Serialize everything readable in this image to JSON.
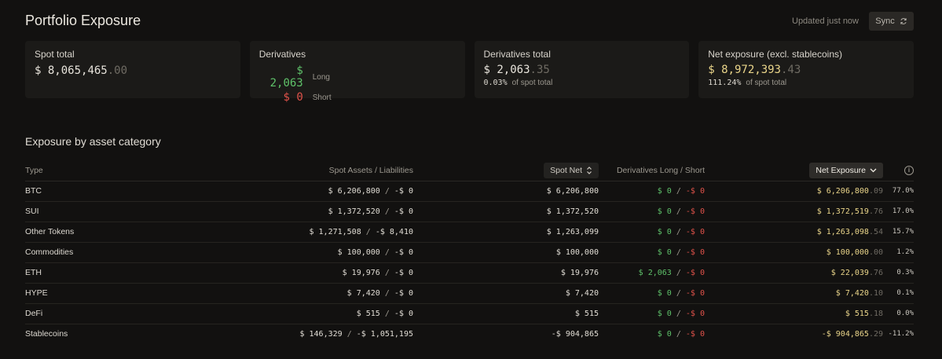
{
  "header": {
    "title": "Portfolio Exposure",
    "updated_text": "Updated just now",
    "sync_label": "Sync"
  },
  "cards": {
    "spot_total": {
      "label": "Spot total",
      "prefix": "$",
      "int": "8,065,465",
      "dec": ".00"
    },
    "derivatives": {
      "label": "Derivatives",
      "long": {
        "prefix": "$",
        "value": "2,063",
        "tag": "Long"
      },
      "short": {
        "prefix": "$",
        "value": "0",
        "tag": "Short"
      }
    },
    "derivatives_total": {
      "label": "Derivatives total",
      "prefix": "$",
      "int": "2,063",
      "dec": ".35",
      "pct": "0.03%",
      "pct_label": "of spot total"
    },
    "net_exposure": {
      "label": "Net exposure (excl. stablecoins)",
      "prefix": "$",
      "int": "8,972,393",
      "dec": ".43",
      "pct": "111.24%",
      "pct_label": "of spot total"
    }
  },
  "table": {
    "section_title": "Exposure by asset category",
    "headers": {
      "type": "Type",
      "spot_assets": "Spot Assets / Liabilities",
      "spot_net": "Spot Net",
      "derivatives": "Derivatives Long / Short",
      "net_exposure": "Net Exposure"
    },
    "rows": [
      {
        "type": "BTC",
        "assets": "$ 6,206,800",
        "liab": "-$ 0",
        "spot_net": "$ 6,206,800",
        "long": "$ 0",
        "short": "-$ 0",
        "exp_int": "$ 6,206,800",
        "exp_dec": ".09",
        "pct": "77.0%"
      },
      {
        "type": "SUI",
        "assets": "$ 1,372,520",
        "liab": "-$ 0",
        "spot_net": "$ 1,372,520",
        "long": "$ 0",
        "short": "-$ 0",
        "exp_int": "$ 1,372,519",
        "exp_dec": ".76",
        "pct": "17.0%"
      },
      {
        "type": "Other Tokens",
        "assets": "$ 1,271,508",
        "liab": "-$ 8,410",
        "spot_net": "$ 1,263,099",
        "long": "$ 0",
        "short": "-$ 0",
        "exp_int": "$ 1,263,098",
        "exp_dec": ".54",
        "pct": "15.7%"
      },
      {
        "type": "Commodities",
        "assets": "$ 100,000",
        "liab": "-$ 0",
        "spot_net": "$ 100,000",
        "long": "$ 0",
        "short": "-$ 0",
        "exp_int": "$ 100,000",
        "exp_dec": ".00",
        "pct": "1.2%"
      },
      {
        "type": "ETH",
        "assets": "$ 19,976",
        "liab": "-$ 0",
        "spot_net": "$ 19,976",
        "long": "$ 2,063",
        "short": "-$ 0",
        "exp_int": "$ 22,039",
        "exp_dec": ".76",
        "pct": "0.3%"
      },
      {
        "type": "HYPE",
        "assets": "$ 7,420",
        "liab": "-$ 0",
        "spot_net": "$ 7,420",
        "long": "$ 0",
        "short": "-$ 0",
        "exp_int": "$ 7,420",
        "exp_dec": ".10",
        "pct": "0.1%"
      },
      {
        "type": "DeFi",
        "assets": "$ 515",
        "liab": "-$ 0",
        "spot_net": "$ 515",
        "long": "$ 0",
        "short": "-$ 0",
        "exp_int": "$ 515",
        "exp_dec": ".18",
        "pct": "0.0%"
      },
      {
        "type": "Stablecoins",
        "assets": "$ 146,329",
        "liab": "-$ 1,051,195",
        "spot_net": "-$ 904,865",
        "long": "$ 0",
        "short": "-$ 0",
        "exp_int": "-$ 904,865",
        "exp_dec": ".29",
        "pct": "-11.2%"
      }
    ]
  },
  "icons": {
    "sync": "refresh-icon",
    "sort": "sort-updown-icon",
    "dropdown": "chevron-down-icon",
    "info": "info-icon"
  },
  "colors": {
    "background": "#121110",
    "card": "#1b1a18",
    "positive": "#5fc26a",
    "negative": "#e0524a",
    "highlight": "#ead58a"
  }
}
